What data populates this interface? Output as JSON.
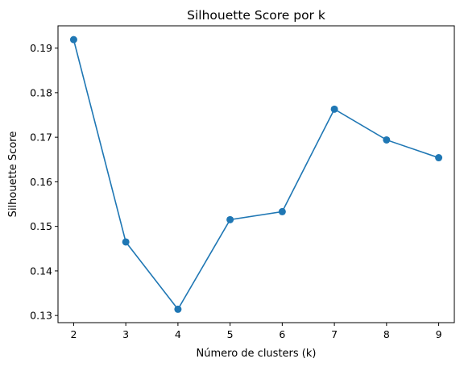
{
  "chart_data": {
    "type": "line",
    "title": "Silhouette Score por k",
    "xlabel": "Número de clusters (k)",
    "ylabel": "Silhouette Score",
    "x": [
      2,
      3,
      4,
      5,
      6,
      7,
      8,
      9
    ],
    "series": [
      {
        "values": [
          0.1919,
          0.1465,
          0.1314,
          0.1515,
          0.1533,
          0.1763,
          0.1694,
          0.1654
        ],
        "color": "#1f77b4",
        "marker": "circle"
      }
    ],
    "xticks": [
      2,
      3,
      4,
      5,
      6,
      7,
      8,
      9
    ],
    "yticks": [
      0.13,
      0.14,
      0.15,
      0.16,
      0.17,
      0.18,
      0.19
    ],
    "ytick_labels": [
      "0.13",
      "0.14",
      "0.15",
      "0.16",
      "0.17",
      "0.18",
      "0.19"
    ],
    "xlim": [
      1.7,
      9.3
    ],
    "ylim": [
      0.1284,
      0.195
    ],
    "grid": false,
    "legend": "none"
  }
}
